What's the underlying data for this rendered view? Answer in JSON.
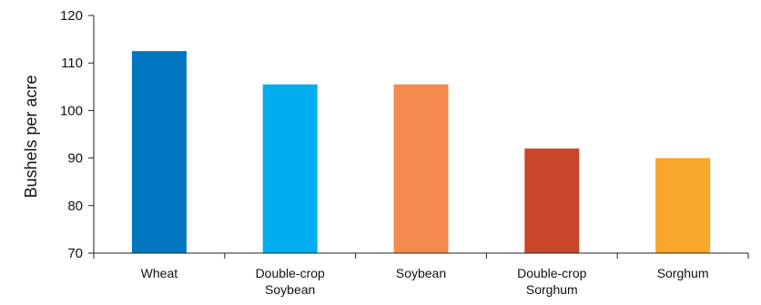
{
  "chart_data": {
    "type": "bar",
    "title": "",
    "xlabel": "",
    "ylabel": "Bushels per acre",
    "ylim": [
      70,
      120
    ],
    "yticks": [
      70,
      80,
      90,
      100,
      110,
      120
    ],
    "grid": false,
    "categories": [
      [
        "Wheat"
      ],
      [
        "Double-crop",
        "Soybean"
      ],
      [
        "Soybean"
      ],
      [
        "Double-crop",
        "Sorghum"
      ],
      [
        "Sorghum"
      ]
    ],
    "values": [
      112.5,
      105.5,
      105.5,
      92,
      90
    ],
    "colors": [
      "#0077c0",
      "#00adef",
      "#f58a4f",
      "#c8462a",
      "#f9a72b"
    ]
  }
}
